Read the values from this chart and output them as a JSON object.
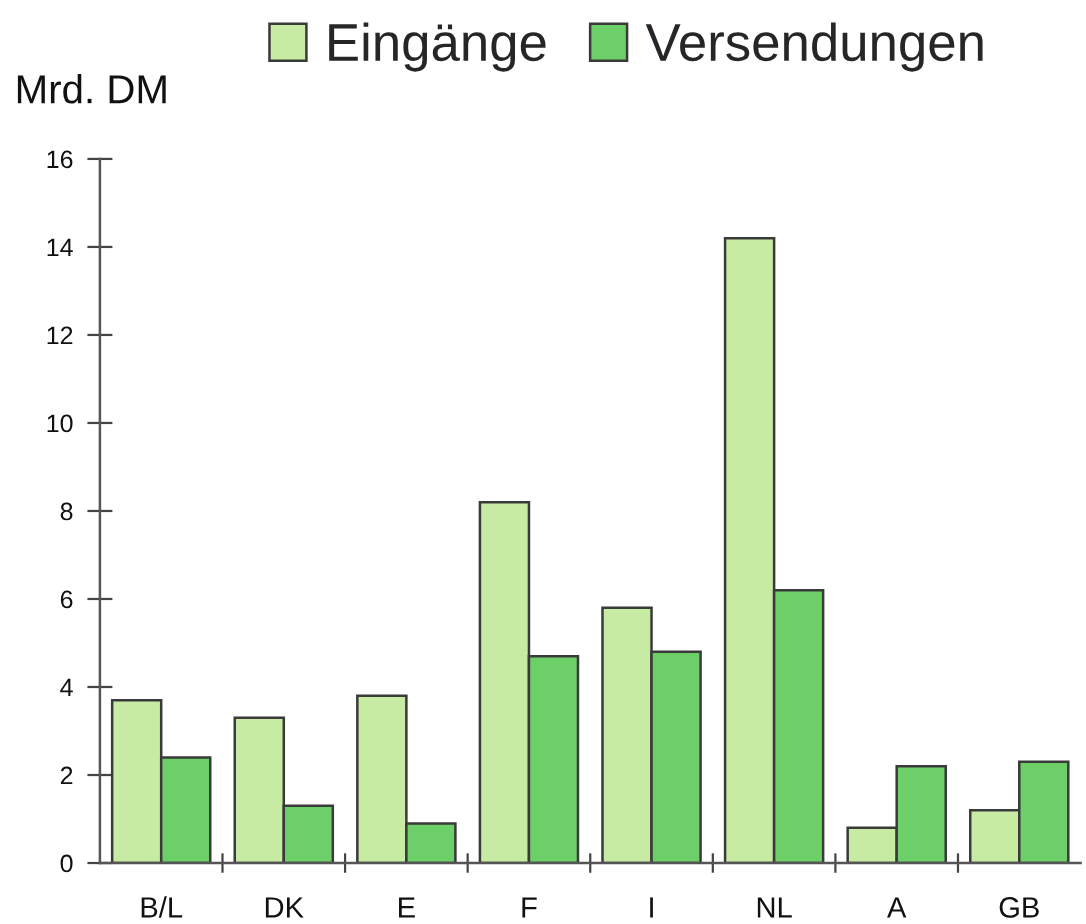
{
  "chart_data": {
    "type": "bar",
    "ylabel": "Mrd. DM",
    "categories": [
      "B/L",
      "DK",
      "E",
      "F",
      "I",
      "NL",
      "A",
      "GB"
    ],
    "series": [
      {
        "name": "Eingänge",
        "color": "#c8eba4",
        "values": [
          3.7,
          3.3,
          3.8,
          8.2,
          5.8,
          14.2,
          0.8,
          1.2
        ]
      },
      {
        "name": "Versendungen",
        "color": "#6dcf68",
        "values": [
          2.4,
          1.3,
          0.9,
          4.7,
          4.8,
          6.2,
          2.2,
          2.3
        ]
      }
    ],
    "ylim": [
      0,
      16
    ],
    "yticks": [
      0,
      2,
      4,
      6,
      8,
      10,
      12,
      14,
      16
    ],
    "legend": "top"
  }
}
